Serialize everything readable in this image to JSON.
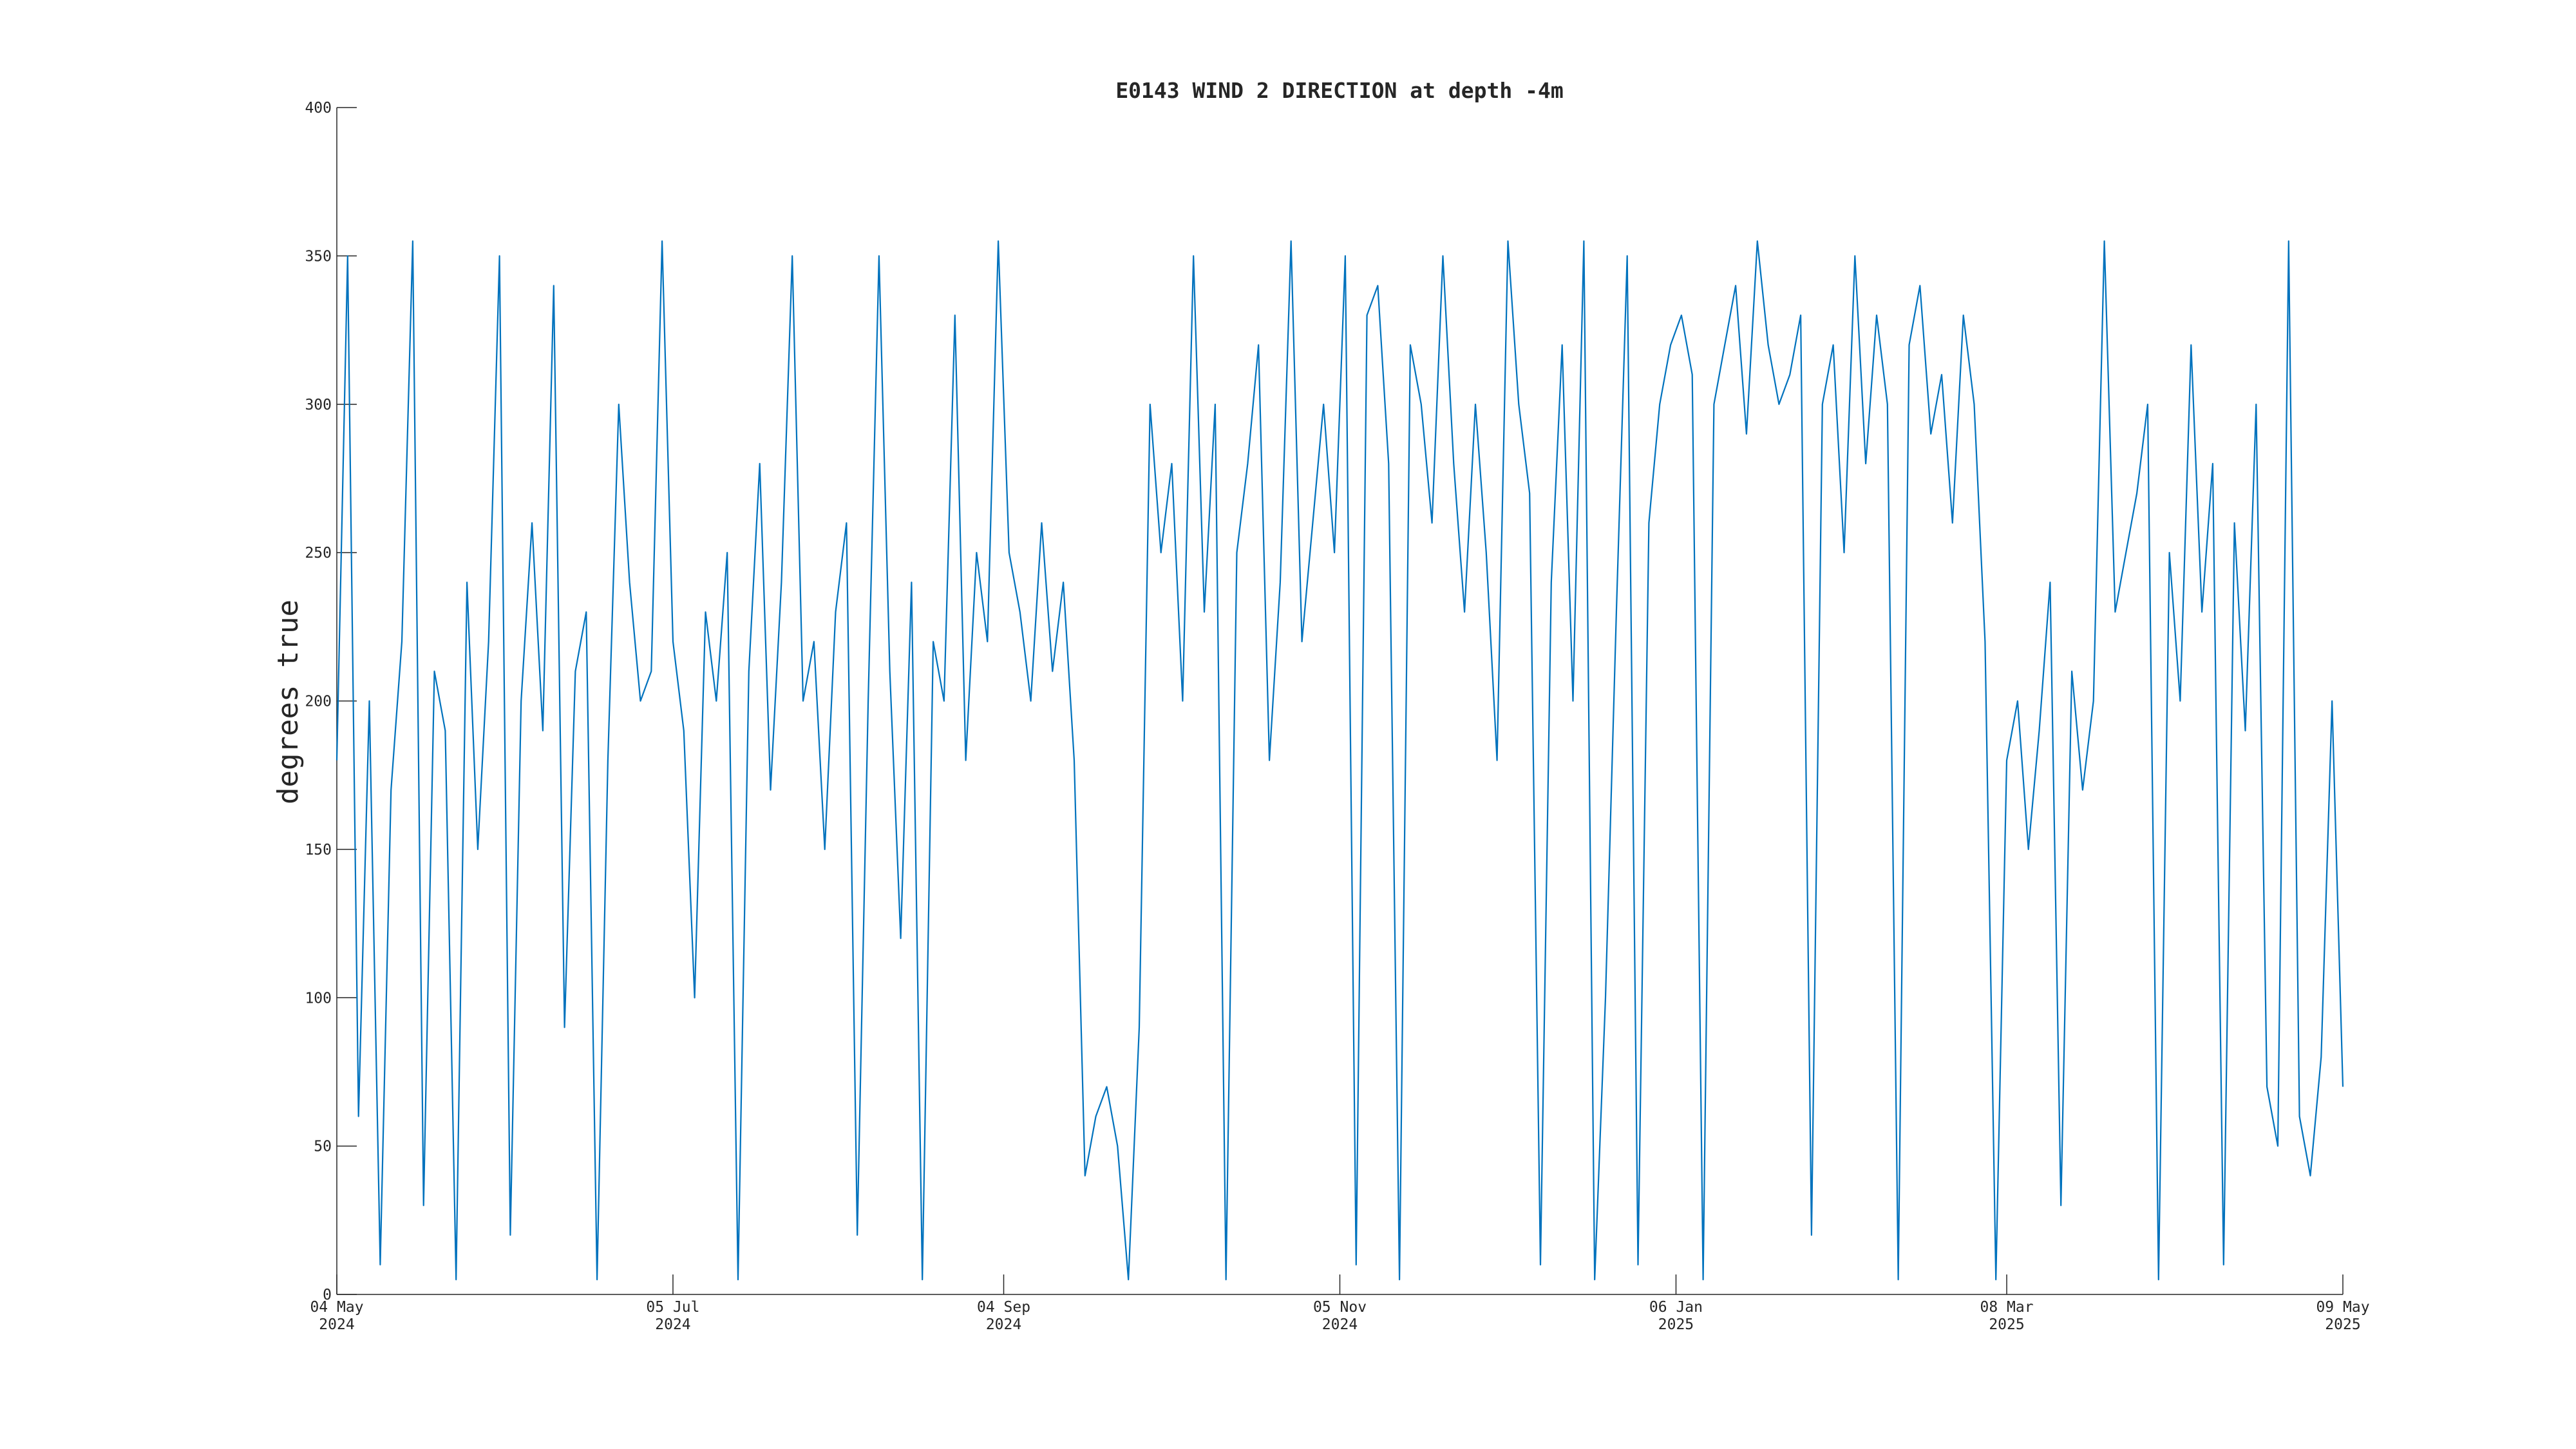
{
  "chart_data": {
    "type": "line",
    "title": "E0143 WIND 2 DIRECTION at depth -4m",
    "y_label": "degrees true",
    "xlim": [
      "2024-05-04",
      "2025-05-09"
    ],
    "xticks": [
      {
        "value": "2024-05-04",
        "label": [
          "04 May",
          "2024"
        ]
      },
      {
        "value": "2024-07-05",
        "label": [
          "05 Jul",
          "2024"
        ]
      },
      {
        "value": "2024-09-04",
        "label": [
          "04 Sep",
          "2024"
        ]
      },
      {
        "value": "2024-11-05",
        "label": [
          "05 Nov",
          "2024"
        ]
      },
      {
        "value": "2025-01-06",
        "label": [
          "06 Jan",
          "2025"
        ]
      },
      {
        "value": "2025-03-08",
        "label": [
          "08 Mar",
          "2025"
        ]
      },
      {
        "value": "2025-05-09",
        "label": [
          "09 May",
          "2025"
        ]
      }
    ],
    "ylim": [
      0,
      400
    ],
    "yticks": [
      0,
      50,
      100,
      150,
      200,
      250,
      300,
      350,
      400
    ],
    "x": [
      "2024-05-04",
      "2024-05-06",
      "2024-05-08",
      "2024-05-10",
      "2024-05-12",
      "2024-05-14",
      "2024-05-16",
      "2024-05-18",
      "2024-05-20",
      "2024-05-22",
      "2024-05-24",
      "2024-05-26",
      "2024-05-28",
      "2024-05-30",
      "2024-06-01",
      "2024-06-03",
      "2024-06-05",
      "2024-06-07",
      "2024-06-09",
      "2024-06-11",
      "2024-06-13",
      "2024-06-15",
      "2024-06-17",
      "2024-06-19",
      "2024-06-21",
      "2024-06-23",
      "2024-06-25",
      "2024-06-27",
      "2024-06-29",
      "2024-07-01",
      "2024-07-03",
      "2024-07-05",
      "2024-07-07",
      "2024-07-09",
      "2024-07-11",
      "2024-07-13",
      "2024-07-15",
      "2024-07-17",
      "2024-07-19",
      "2024-07-21",
      "2024-07-23",
      "2024-07-25",
      "2024-07-27",
      "2024-07-29",
      "2024-07-31",
      "2024-08-02",
      "2024-08-04",
      "2024-08-06",
      "2024-08-08",
      "2024-08-10",
      "2024-08-12",
      "2024-08-14",
      "2024-08-16",
      "2024-08-18",
      "2024-08-20",
      "2024-08-22",
      "2024-08-24",
      "2024-08-26",
      "2024-08-28",
      "2024-08-30",
      "2024-09-01",
      "2024-09-03",
      "2024-09-05",
      "2024-09-07",
      "2024-09-09",
      "2024-09-11",
      "2024-09-13",
      "2024-09-15",
      "2024-09-17",
      "2024-09-19",
      "2024-09-21",
      "2024-09-23",
      "2024-09-25",
      "2024-09-27",
      "2024-09-29",
      "2024-10-01",
      "2024-10-03",
      "2024-10-05",
      "2024-10-07",
      "2024-10-09",
      "2024-10-11",
      "2024-10-13",
      "2024-10-15",
      "2024-10-17",
      "2024-10-19",
      "2024-10-21",
      "2024-10-23",
      "2024-10-25",
      "2024-10-27",
      "2024-10-29",
      "2024-10-31",
      "2024-11-02",
      "2024-11-04",
      "2024-11-06",
      "2024-11-08",
      "2024-11-10",
      "2024-11-12",
      "2024-11-14",
      "2024-11-16",
      "2024-11-18",
      "2024-11-20",
      "2024-11-22",
      "2024-11-24",
      "2024-11-26",
      "2024-11-28",
      "2024-11-30",
      "2024-12-02",
      "2024-12-04",
      "2024-12-06",
      "2024-12-08",
      "2024-12-10",
      "2024-12-12",
      "2024-12-14",
      "2024-12-16",
      "2024-12-18",
      "2024-12-20",
      "2024-12-22",
      "2024-12-24",
      "2024-12-26",
      "2024-12-28",
      "2024-12-30",
      "2025-01-01",
      "2025-01-03",
      "2025-01-05",
      "2025-01-07",
      "2025-01-09",
      "2025-01-11",
      "2025-01-13",
      "2025-01-15",
      "2025-01-17",
      "2025-01-19",
      "2025-01-21",
      "2025-01-23",
      "2025-01-25",
      "2025-01-27",
      "2025-01-29",
      "2025-01-31",
      "2025-02-02",
      "2025-02-04",
      "2025-02-06",
      "2025-02-08",
      "2025-02-10",
      "2025-02-12",
      "2025-02-14",
      "2025-02-16",
      "2025-02-18",
      "2025-02-20",
      "2025-02-22",
      "2025-02-24",
      "2025-02-26",
      "2025-02-28",
      "2025-03-02",
      "2025-03-04",
      "2025-03-06",
      "2025-03-08",
      "2025-03-10",
      "2025-03-12",
      "2025-03-14",
      "2025-03-16",
      "2025-03-18",
      "2025-03-20",
      "2025-03-22",
      "2025-03-24",
      "2025-03-26",
      "2025-03-28",
      "2025-03-30",
      "2025-04-01",
      "2025-04-03",
      "2025-04-05",
      "2025-04-07",
      "2025-04-09",
      "2025-04-11",
      "2025-04-13",
      "2025-04-15",
      "2025-04-17",
      "2025-04-19",
      "2025-04-21",
      "2025-04-23",
      "2025-04-25",
      "2025-04-27",
      "2025-04-29",
      "2025-05-01",
      "2025-05-03",
      "2025-05-05",
      "2025-05-07",
      "2025-05-09"
    ],
    "series": [
      {
        "color": "#0072bd",
        "values": [
          180,
          350,
          60,
          200,
          10,
          170,
          220,
          355,
          30,
          210,
          190,
          5,
          240,
          150,
          220,
          350,
          20,
          200,
          260,
          190,
          340,
          90,
          210,
          230,
          5,
          180,
          300,
          240,
          200,
          210,
          355,
          220,
          190,
          100,
          230,
          200,
          250,
          5,
          210,
          280,
          170,
          240,
          350,
          200,
          220,
          150,
          230,
          260,
          20,
          200,
          350,
          210,
          120,
          240,
          5,
          220,
          200,
          330,
          180,
          250,
          220,
          355,
          250,
          230,
          200,
          260,
          210,
          240,
          180,
          40,
          60,
          70,
          50,
          5,
          90,
          300,
          250,
          280,
          200,
          350,
          230,
          300,
          5,
          250,
          280,
          320,
          180,
          240,
          355,
          220,
          260,
          300,
          250,
          350,
          10,
          330,
          340,
          280,
          5,
          320,
          300,
          260,
          350,
          280,
          230,
          300,
          250,
          180,
          355,
          300,
          270,
          10,
          240,
          320,
          200,
          355,
          5,
          100,
          230,
          350,
          10,
          260,
          300,
          320,
          330,
          310,
          5,
          300,
          320,
          340,
          290,
          355,
          320,
          300,
          310,
          330,
          20,
          300,
          320,
          250,
          350,
          280,
          330,
          300,
          5,
          320,
          340,
          290,
          310,
          260,
          330,
          300,
          220,
          5,
          180,
          200,
          150,
          190,
          240,
          30,
          210,
          170,
          200,
          355,
          230,
          250,
          270,
          300,
          5,
          250,
          200,
          320,
          230,
          280,
          10,
          260,
          190,
          300,
          70,
          50,
          355,
          60,
          40,
          80,
          200,
          70
        ]
      }
    ]
  }
}
